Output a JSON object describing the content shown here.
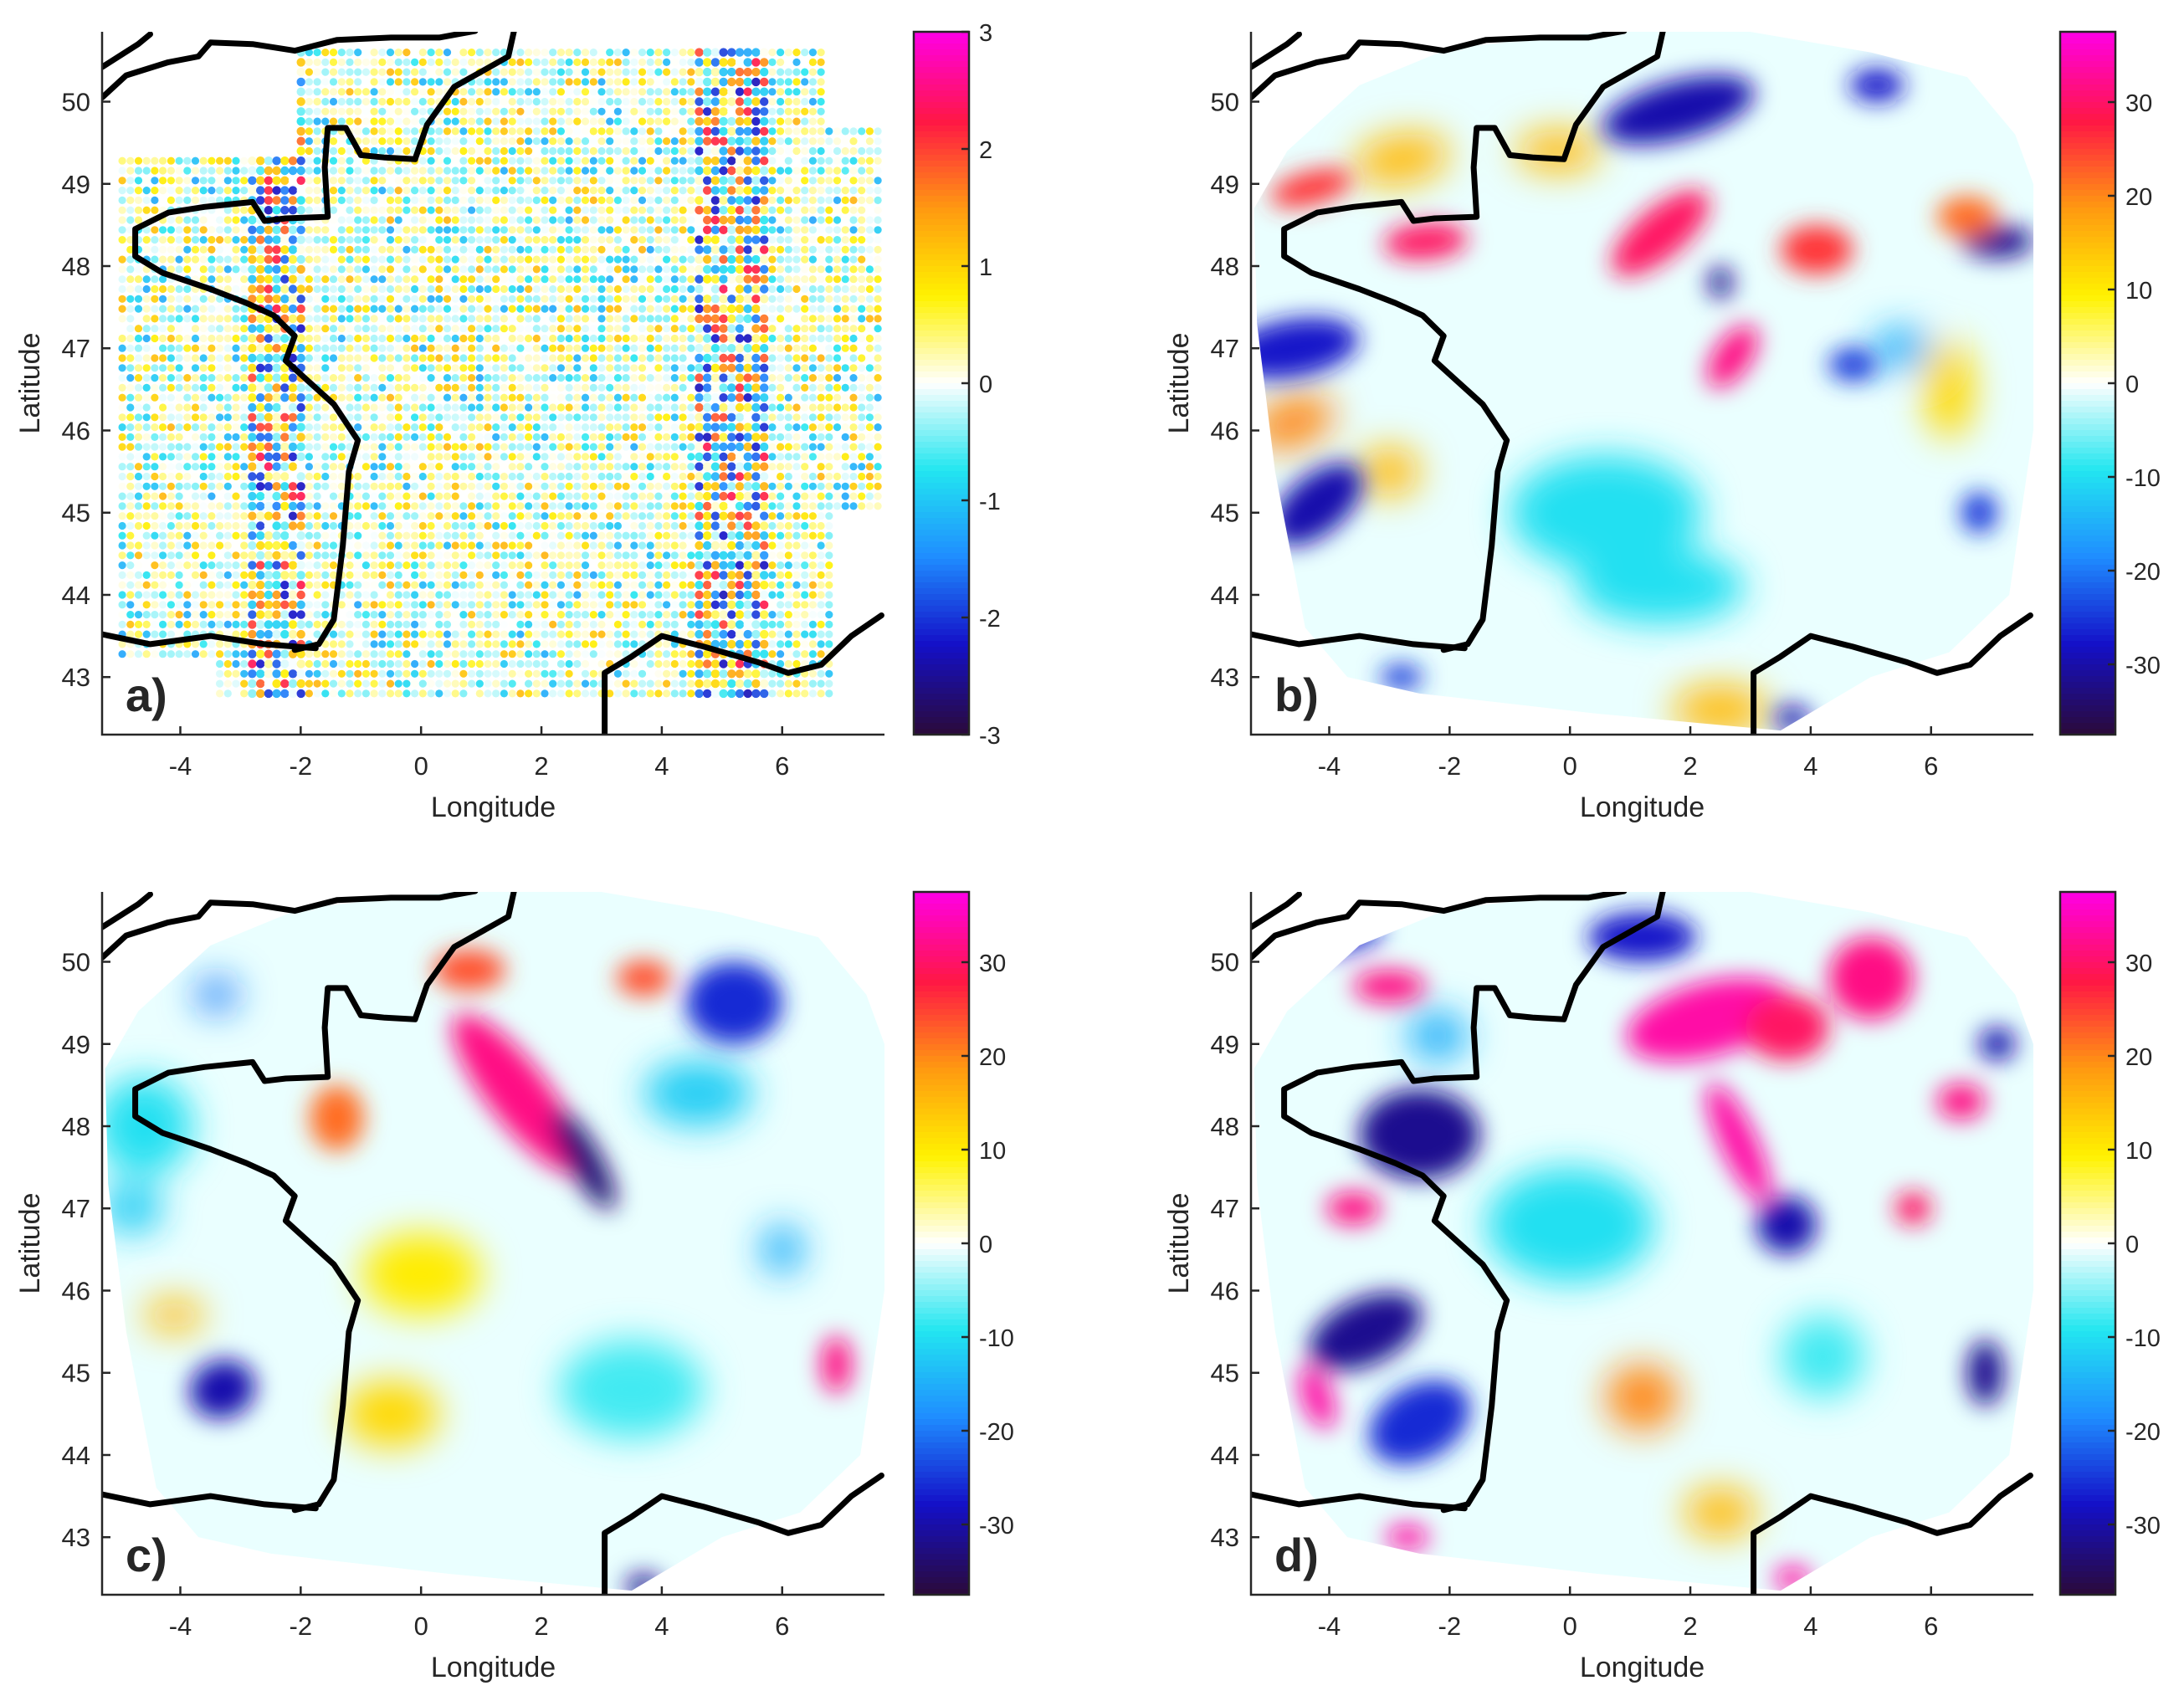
{
  "figure": {
    "panels": [
      {
        "label": "a)",
        "xlabel": "Longitude",
        "ylabel": "Latitude",
        "xticks": [
          -4,
          -2,
          0,
          2,
          4,
          6
        ],
        "yticks": [
          43,
          44,
          45,
          46,
          47,
          48,
          49,
          50
        ],
        "colorbar_ticks": [
          3,
          2,
          1,
          0,
          -1,
          -2,
          -3
        ],
        "clim": [
          -3,
          3
        ],
        "style": "dots"
      },
      {
        "label": "b)",
        "xlabel": "Longitude",
        "ylabel": "Latitude",
        "xticks": [
          -4,
          -2,
          0,
          2,
          4,
          6
        ],
        "yticks": [
          43,
          44,
          45,
          46,
          47,
          48,
          49,
          50
        ],
        "colorbar_ticks": [
          30,
          20,
          10,
          0,
          -10,
          -20,
          -30
        ],
        "clim": [
          -37.5,
          37.5
        ],
        "style": "field"
      },
      {
        "label": "c)",
        "xlabel": "Longitude",
        "ylabel": "Latitude",
        "xticks": [
          -4,
          -2,
          0,
          2,
          4,
          6
        ],
        "yticks": [
          43,
          44,
          45,
          46,
          47,
          48,
          49,
          50
        ],
        "colorbar_ticks": [
          30,
          20,
          10,
          0,
          -10,
          -20,
          -30
        ],
        "clim": [
          -37.5,
          37.5
        ],
        "style": "field"
      },
      {
        "label": "d)",
        "xlabel": "Longitude",
        "ylabel": "Latitude",
        "xticks": [
          -4,
          -2,
          0,
          2,
          4,
          6
        ],
        "yticks": [
          43,
          44,
          45,
          46,
          47,
          48,
          49,
          50
        ],
        "colorbar_ticks": [
          30,
          20,
          10,
          0,
          -10,
          -20,
          -30
        ],
        "clim": [
          -37.5,
          37.5
        ],
        "style": "field"
      }
    ],
    "map_extent": {
      "lon": [
        -5.3,
        7.7
      ],
      "lat": [
        42.3,
        50.85
      ]
    },
    "colormap": [
      "#2a0a3e",
      "#1410c8",
      "#1f8cff",
      "#22e6f0",
      "#ffffff",
      "#fff200",
      "#ff9a10",
      "#ff1744",
      "#ff00e0"
    ]
  }
}
